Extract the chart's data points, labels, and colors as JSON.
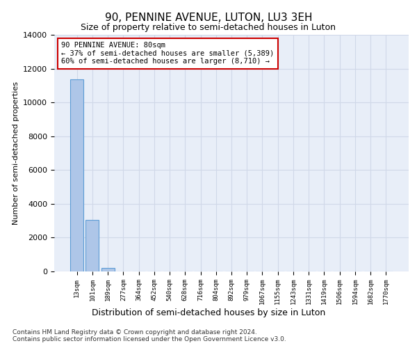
{
  "title": "90, PENNINE AVENUE, LUTON, LU3 3EH",
  "subtitle": "Size of property relative to semi-detached houses in Luton",
  "xlabel": "Distribution of semi-detached houses by size in Luton",
  "ylabel": "Number of semi-detached properties",
  "categories": [
    "13sqm",
    "101sqm",
    "189sqm",
    "277sqm",
    "364sqm",
    "452sqm",
    "540sqm",
    "628sqm",
    "716sqm",
    "804sqm",
    "892sqm",
    "979sqm",
    "1067sqm",
    "1155sqm",
    "1243sqm",
    "1331sqm",
    "1419sqm",
    "1506sqm",
    "1594sqm",
    "1682sqm",
    "1770sqm"
  ],
  "values": [
    11350,
    3050,
    200,
    0,
    0,
    0,
    0,
    0,
    0,
    0,
    0,
    0,
    0,
    0,
    0,
    0,
    0,
    0,
    0,
    0,
    0
  ],
  "bar_color": "#aec6e8",
  "bar_edge_color": "#5b9bd5",
  "grid_color": "#d0d8e8",
  "background_color": "#e8eef8",
  "annotation_text": "90 PENNINE AVENUE: 80sqm\n← 37% of semi-detached houses are smaller (5,389)\n60% of semi-detached houses are larger (8,710) →",
  "annotation_box_color": "#ffffff",
  "annotation_box_edge": "#cc0000",
  "ylim": [
    0,
    14000
  ],
  "yticks": [
    0,
    2000,
    4000,
    6000,
    8000,
    10000,
    12000,
    14000
  ],
  "footnote1": "Contains HM Land Registry data © Crown copyright and database right 2024.",
  "footnote2": "Contains public sector information licensed under the Open Government Licence v3.0."
}
